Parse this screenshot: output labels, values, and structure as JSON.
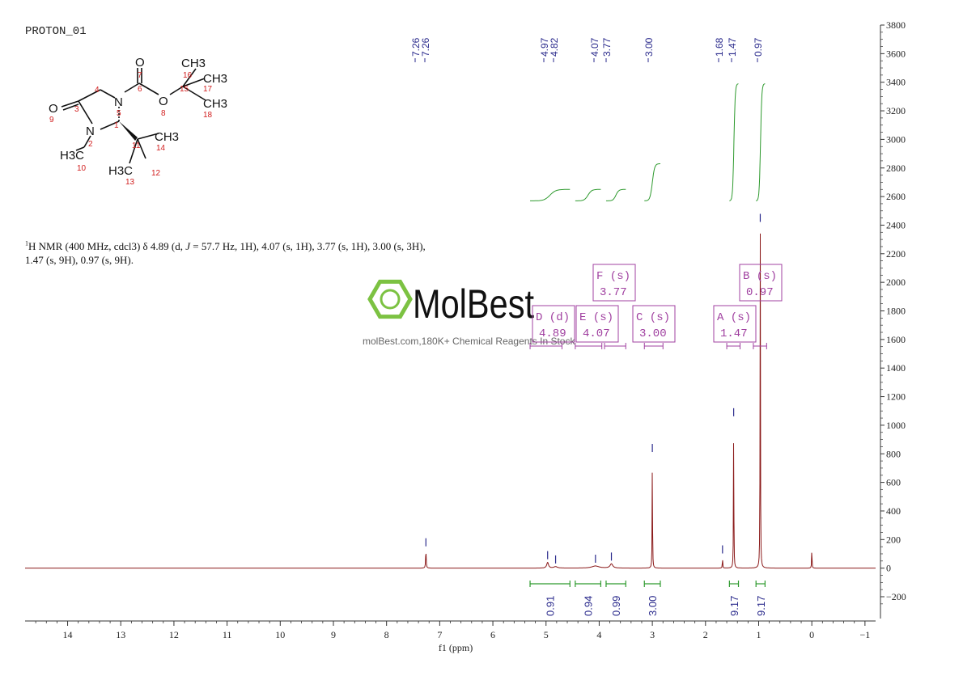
{
  "document": {
    "title": "PROTON_01",
    "nmr_text": {
      "sup": "1",
      "pre_J": "H NMR (400 MHz, cdcl3) δ 4.89 (d, ",
      "J": "J",
      "post_J": " = 57.7 Hz, 1H), 4.07 (s, 1H), 3.77 (s, 1H), 3.00 (s, 3H),",
      "line2": "1.47 (s, 9H), 0.97 (s, 9H)."
    }
  },
  "watermark": {
    "brand": "MolBest",
    "tagline": "molBest.com,180K+ Chemical Reagents In Stock"
  },
  "molecule": {
    "atoms": [
      "O",
      "N",
      "O",
      "N",
      "O",
      "CH3",
      "CH3",
      "CH3",
      "CH3",
      "H3C",
      "H3C"
    ],
    "numbers": [
      "1",
      "2",
      "3",
      "4",
      "5",
      "6",
      "7",
      "8",
      "9",
      "10",
      "11",
      "12",
      "13",
      "14",
      "15",
      "16",
      "17",
      "18"
    ]
  },
  "colors": {
    "spectrum": "#8b1a1a",
    "integral": "#2e9a2e",
    "peak_label": "#2a2a8c",
    "multiplet_box": "#a040a0",
    "axis": "#333333",
    "atom_number": "#d22020",
    "logo_green": "#7cc242"
  },
  "chart_data": {
    "type": "line",
    "title": "",
    "xlabel": "f1 (ppm)",
    "ylabel": "",
    "x_reversed": true,
    "xlim": [
      14.8,
      -1.2
    ],
    "ylim": [
      -300,
      3800
    ],
    "grid": false,
    "x_ticks": [
      14,
      13,
      12,
      11,
      10,
      9,
      8,
      7,
      6,
      5,
      4,
      3,
      2,
      1,
      0,
      -1
    ],
    "x_tick_labels": [
      "14",
      "13",
      "12",
      "11",
      "10",
      "9",
      "8",
      "7",
      "6",
      "5",
      "4",
      "3",
      "2",
      "1",
      "0",
      "−1"
    ],
    "y_ticks": [
      3800,
      3600,
      3400,
      3200,
      3000,
      2800,
      2600,
      2400,
      2200,
      2000,
      1800,
      1600,
      1400,
      1200,
      1000,
      800,
      600,
      400,
      200,
      0,
      -200
    ],
    "y_tick_labels": [
      "3800",
      "3600",
      "3400",
      "3200",
      "3000",
      "2800",
      "2600",
      "2400",
      "2200",
      "2000",
      "1800",
      "1600",
      "1400",
      "1200",
      "1000",
      "800",
      "600",
      "400",
      "200",
      "0",
      "−200"
    ],
    "spectrum_peaks": [
      {
        "ppm": 7.26,
        "height": 130,
        "width": 0.006
      },
      {
        "ppm": 4.97,
        "height": 40,
        "width": 0.02
      },
      {
        "ppm": 4.82,
        "height": 10,
        "width": 0.04
      },
      {
        "ppm": 4.07,
        "height": 15,
        "width": 0.08
      },
      {
        "ppm": 3.77,
        "height": 30,
        "width": 0.03
      },
      {
        "ppm": 3.0,
        "height": 790,
        "width": 0.004
      },
      {
        "ppm": 1.68,
        "height": 80,
        "width": 0.004
      },
      {
        "ppm": 1.47,
        "height": 1040,
        "width": 0.004
      },
      {
        "ppm": 0.97,
        "height": 2400,
        "width": 0.004
      },
      {
        "ppm": 0.0,
        "height": 155,
        "width": 0.004
      }
    ],
    "peak_labels": [
      {
        "text": "7.26",
        "ppm": 7.26
      },
      {
        "text": "7.26",
        "ppm": 7.26
      },
      {
        "text": "4.97",
        "ppm": 4.97
      },
      {
        "text": "4.82",
        "ppm": 4.82
      },
      {
        "text": "4.07",
        "ppm": 4.07
      },
      {
        "text": "3.77",
        "ppm": 3.77
      },
      {
        "text": "3.00",
        "ppm": 3.0
      },
      {
        "text": "1.68",
        "ppm": 1.68
      },
      {
        "text": "1.47",
        "ppm": 1.47
      },
      {
        "text": "0.97",
        "ppm": 0.97
      }
    ],
    "integral_curves": [
      {
        "from": 5.3,
        "to": 4.55,
        "y0": 2570,
        "y1": 2650
      },
      {
        "from": 4.45,
        "to": 3.97,
        "y0": 2570,
        "y1": 2650
      },
      {
        "from": 3.87,
        "to": 3.5,
        "y0": 2570,
        "y1": 2650
      },
      {
        "from": 3.15,
        "to": 2.85,
        "y0": 2570,
        "y1": 2830
      },
      {
        "from": 1.55,
        "to": 1.38,
        "y0": 2570,
        "y1": 3390
      },
      {
        "from": 1.05,
        "to": 0.88,
        "y0": 2570,
        "y1": 3390
      }
    ],
    "integrations": [
      {
        "value": "0.91",
        "from": 5.3,
        "to": 4.55
      },
      {
        "value": "0.94",
        "from": 4.45,
        "to": 3.97
      },
      {
        "value": "0.99",
        "from": 3.87,
        "to": 3.5
      },
      {
        "value": "3.00",
        "from": 3.15,
        "to": 2.85
      },
      {
        "value": "9.17",
        "from": 1.55,
        "to": 1.38
      },
      {
        "value": "9.17",
        "from": 1.05,
        "to": 0.88
      }
    ],
    "multiplets": [
      {
        "label": "D (d)",
        "shift": "4.89",
        "range": [
          5.3,
          4.7
        ]
      },
      {
        "label": "E (s)",
        "shift": "4.07",
        "range": [
          4.45,
          3.95
        ]
      },
      {
        "label": "F (s)",
        "shift": "3.77",
        "range": [
          3.9,
          3.5
        ]
      },
      {
        "label": "C (s)",
        "shift": "3.00",
        "range": [
          3.15,
          2.8
        ]
      },
      {
        "label": "A (s)",
        "shift": "1.47",
        "range": [
          1.6,
          1.35
        ]
      },
      {
        "label": "B (s)",
        "shift": "0.97",
        "range": [
          1.1,
          0.85
        ]
      }
    ]
  }
}
